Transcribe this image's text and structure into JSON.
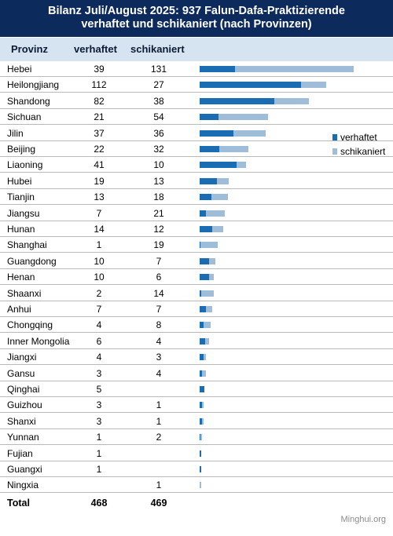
{
  "title": {
    "line1": "Bilanz Juli/August 2025: 937 Falun-Dafa-Praktizierende",
    "line2": "verhaftet und schikaniert (nach Provinzen)"
  },
  "headers": {
    "province": "Provinz",
    "arrested": "verhaftet",
    "harassed": "schikaniert"
  },
  "legend": {
    "arrested": "verhaftet",
    "harassed": "schikaniert"
  },
  "total": {
    "label": "Total",
    "arrested": "468",
    "harassed": "469"
  },
  "source": "Minghui.org",
  "colors": {
    "arrested": "#1a6db3",
    "harassed": "#9fbcd9",
    "title_bg": "#0d2a5c",
    "header_bg": "#d6e4f2"
  },
  "chart_data": {
    "type": "bar",
    "orientation": "horizontal",
    "stacked": true,
    "categories": [
      "Hebei",
      "Heilongjiang",
      "Shandong",
      "Sichuan",
      "Jilin",
      "Beijing",
      "Liaoning",
      "Hubei",
      "Tianjin",
      "Jiangsu",
      "Hunan",
      "Shanghai",
      "Guangdong",
      "Henan",
      "Shaanxi",
      "Anhui",
      "Chongqing",
      "Inner Mongolia",
      "Jiangxi",
      "Gansu",
      "Qinghai",
      "Guizhou",
      "Shanxi",
      "Yunnan",
      "Fujian",
      "Guangxi",
      "Ningxia"
    ],
    "series": [
      {
        "name": "verhaftet",
        "values": [
          39,
          112,
          82,
          21,
          37,
          22,
          41,
          19,
          13,
          7,
          14,
          1,
          10,
          10,
          2,
          7,
          4,
          6,
          4,
          3,
          5,
          3,
          3,
          1,
          1,
          1,
          0
        ]
      },
      {
        "name": "schikaniert",
        "values": [
          131,
          27,
          38,
          54,
          36,
          32,
          10,
          13,
          18,
          21,
          12,
          19,
          7,
          6,
          14,
          7,
          8,
          4,
          3,
          4,
          0,
          1,
          1,
          2,
          0,
          0,
          1
        ]
      }
    ],
    "legend_position": "right"
  }
}
